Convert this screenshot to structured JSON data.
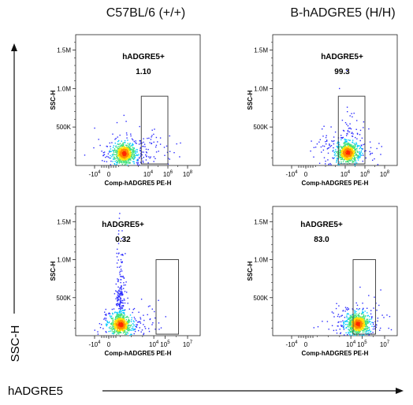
{
  "figure": {
    "y_axis_label": "SSC-H",
    "x_axis_label": "hADGRE5",
    "col_titles": [
      "C57BL/6 (+/+)",
      "B-hADGRE5 (H/H)"
    ]
  },
  "colors": {
    "dot_low": "#2b2bff",
    "dot_mid": "#00c8ff",
    "dot_high": "#ffe000",
    "dot_peak": "#ff2a00",
    "gate": "#333333"
  },
  "chart_data": [
    {
      "type": "scatter",
      "panel": "C57BL/6 (+/+) top",
      "title": "",
      "xlabel": "Comp-hADGRE5 PE-H",
      "ylabel": "SSC-H",
      "x_ticks": [
        "-10^4",
        "0",
        "10^4",
        "10^6",
        "10^8"
      ],
      "y_ticks": [
        "500K",
        "1.0M",
        "1.5M"
      ],
      "ylim": [
        0,
        1700000
      ],
      "gate": {
        "name": "hADGRE5+",
        "percent": "1.10",
        "x_range": [
          "10^3.3",
          "10^6"
        ],
        "y_range": [
          20000,
          900000
        ]
      },
      "population": {
        "center_x": "10^1.5",
        "center_y": 160000
      }
    },
    {
      "type": "scatter",
      "panel": "B-hADGRE5 (H/H) top",
      "title": "",
      "xlabel": "Comp-hADGRE5 PE-H",
      "ylabel": "SSC-H",
      "x_ticks": [
        "-10^4",
        "0",
        "10^4",
        "10^6",
        "10^8"
      ],
      "y_ticks": [
        "500K",
        "1.0M",
        "1.5M"
      ],
      "ylim": [
        0,
        1700000
      ],
      "gate": {
        "name": "hADGRE5+",
        "percent": "99.3",
        "x_range": [
          "10^3.3",
          "10^6"
        ],
        "y_range": [
          20000,
          900000
        ]
      },
      "population": {
        "center_x": "10^4.2",
        "center_y": 170000
      }
    },
    {
      "type": "scatter",
      "panel": "C57BL/6 (+/+) bottom",
      "title": "",
      "xlabel": "Comp-hADGRE5 PE-H",
      "ylabel": "SSC-H",
      "x_ticks": [
        "-10^4",
        "0",
        "10^4",
        "10^5",
        "10^7"
      ],
      "y_ticks": [
        "500K",
        "1.0M",
        "1.5M"
      ],
      "ylim": [
        0,
        1700000
      ],
      "gate": {
        "name": "hADGRE5+",
        "percent": "0.32",
        "x_range": [
          "10^4.2",
          "10^6.2"
        ],
        "y_range": [
          20000,
          1000000
        ]
      },
      "population": {
        "center_x": "10^1",
        "center_y": 150000
      }
    },
    {
      "type": "scatter",
      "panel": "B-hADGRE5 (H/H) bottom",
      "title": "",
      "xlabel": "Comp-hADGRE5 PE-H",
      "ylabel": "SSC-H",
      "x_ticks": [
        "-10^4",
        "0",
        "10^4",
        "10^5",
        "10^7"
      ],
      "y_ticks": [
        "500K",
        "1.0M",
        "1.5M"
      ],
      "ylim": [
        0,
        1700000
      ],
      "gate": {
        "name": "hADGRE5+",
        "percent": "83.0",
        "x_range": [
          "10^4.2",
          "10^6.2"
        ],
        "y_range": [
          20000,
          1000000
        ]
      },
      "population": {
        "center_x": "10^4.6",
        "center_y": 160000
      }
    }
  ]
}
